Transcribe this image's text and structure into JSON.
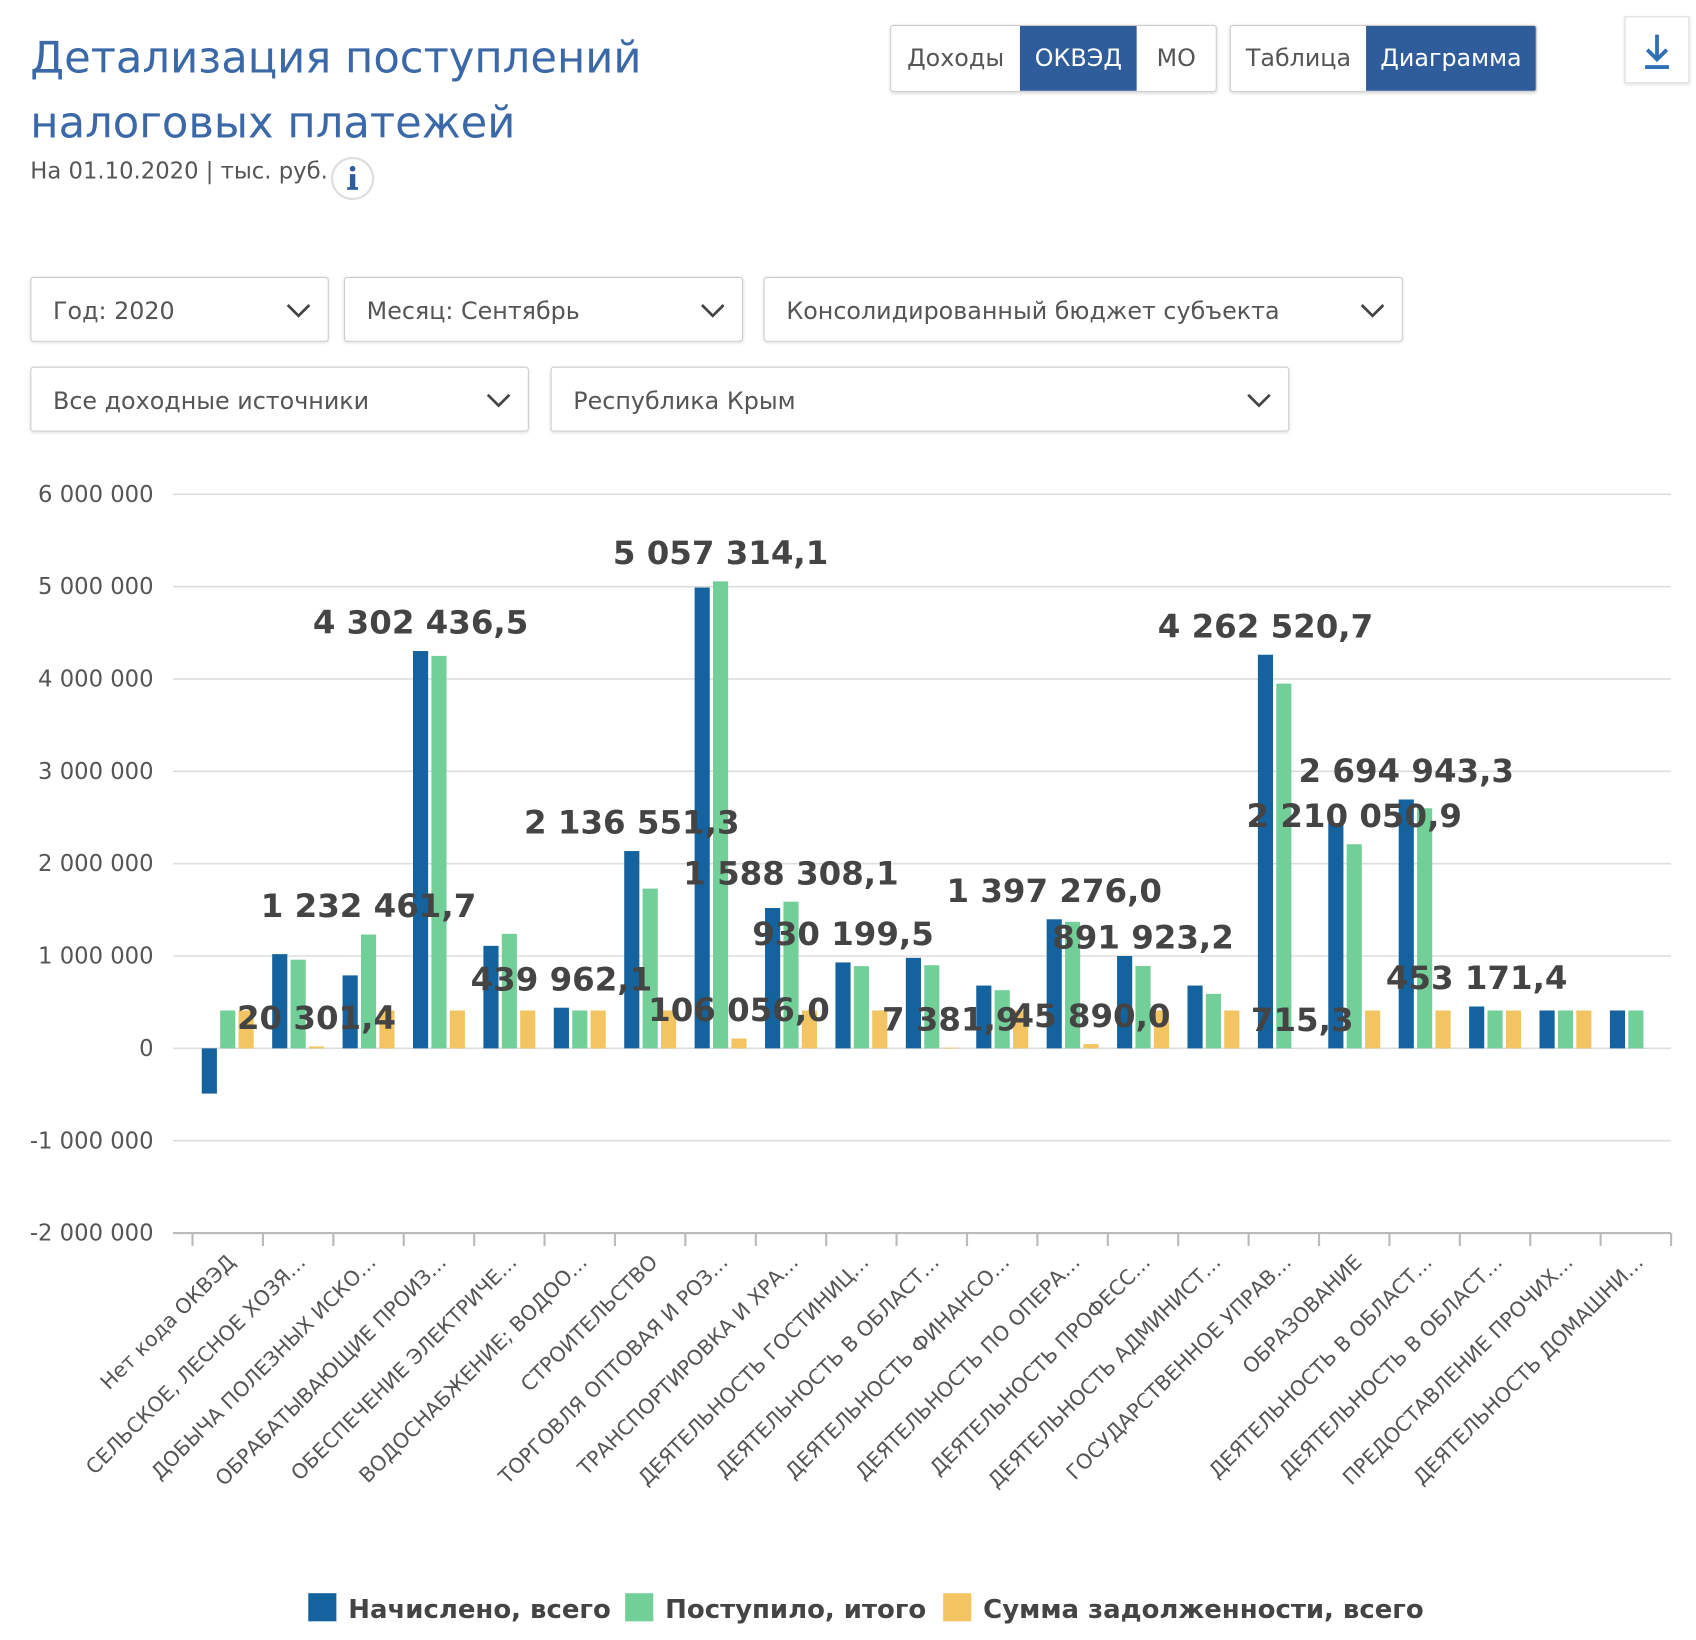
{
  "header": {
    "title": "Детализация поступлений налоговых платежей",
    "subtitle": "На 01.10.2020 | тыс. руб."
  },
  "toggles": [
    [
      {
        "label": "Доходы"
      },
      {
        "label": "ОКВЭД",
        "active": true
      },
      {
        "label": "МО"
      }
    ],
    [
      {
        "label": "Таблица"
      },
      {
        "label": "Диаграмма",
        "active": true
      }
    ]
  ],
  "filters": [
    [
      "Год: 2020",
      "Месяц: Сентябрь",
      "Консолидированный бюджет субъекта"
    ],
    [
      "Все доходные источники",
      "Республика Крым"
    ]
  ],
  "chart_data": {
    "type": "bar",
    "categories": [
      "Нет кода ОКВЭД",
      "СЕЛЬСКОЕ, ЛЕСНОЕ ХОЗЯ…",
      "ДОБЫЧА ПОЛЕЗНЫХ ИСКО…",
      "ОБРАБАТЫВАЮЩИЕ ПРОИЗ…",
      "ОБЕСПЕЧЕНИЕ ЭЛЕКТРИЧЕ…",
      "ВОДОСНАБЖЕНИЕ; ВОДОО…",
      "СТРОИТЕЛЬСТВО",
      "ТОРГОВЛЯ ОПТОВАЯ И РОЗ…",
      "ТРАНСПОРТИРОВКА И ХРА…",
      "ДЕЯТЕЛЬНОСТЬ ГОСТИНИЦ…",
      "ДЕЯТЕЛЬНОСТЬ В ОБЛАСТ…",
      "ДЕЯТЕЛЬНОСТЬ ФИНАНСО…",
      "ДЕЯТЕЛЬНОСТЬ ПО ОПЕРА…",
      "ДЕЯТЕЛЬНОСТЬ ПРОФЕСС…",
      "ДЕЯТЕЛЬНОСТЬ АДМИНИСТ…",
      "ГОСУДАРСТВЕННОЕ УПРАВ…",
      "ОБРАЗОВАНИЕ",
      "ДЕЯТЕЛЬНОСТЬ В ОБЛАСТ…",
      "ДЕЯТЕЛЬНОСТЬ В ОБЛАСТ…",
      "ПРЕДОСТАВЛЕНИЕ ПРОЧИХ…",
      "ДЕЯТЕЛЬНОСТЬ ДОМАШНИ…"
    ],
    "series": [
      {
        "name": "Начислено, всего",
        "color": "#14629e",
        "values": [
          -490000,
          1020000,
          790000,
          4302436.5,
          1110000,
          439962.1,
          2136551.3,
          4990000,
          1520000,
          930199.5,
          980000,
          680000,
          1397276.0,
          1000000,
          680000,
          4262520.7,
          2440000,
          2694943.3,
          453171.4,
          410000,
          410000
        ],
        "value_labels": [
          null,
          null,
          null,
          "4 302 436,5",
          null,
          "439 962,1",
          "2 136 551,3",
          null,
          null,
          "930 199,5",
          null,
          null,
          "1 397 276,0",
          null,
          null,
          "4 262 520,7",
          null,
          "2 694 943,3",
          "453 171,4",
          null,
          null
        ]
      },
      {
        "name": "Поступило, итого",
        "color": "#72cf98",
        "values": [
          410000,
          960000,
          1232461.7,
          4250000,
          1240000,
          410000,
          1730000,
          5057314.1,
          1588308.1,
          890000,
          900000,
          630000,
          1370000,
          891923.2,
          590000,
          3950000,
          2210050.9,
          2600000,
          410000,
          410000,
          410000
        ],
        "value_labels": [
          null,
          null,
          "1 232 461,7",
          null,
          null,
          null,
          null,
          "5 057 314,1",
          "1 588 308,1",
          null,
          null,
          null,
          null,
          "891 923,2",
          null,
          null,
          "2 210 050,9",
          null,
          null,
          null,
          null
        ]
      },
      {
        "name": "Сумма задолженности, всего",
        "color": "#f2c462",
        "values": [
          410000,
          20301.4,
          410000,
          410000,
          410000,
          410000,
          410000,
          106056.0,
          410000,
          410000,
          7381.9,
          410000,
          45890.0,
          410000,
          410000,
          715.3,
          410000,
          410000,
          410000,
          410000,
          null
        ],
        "value_labels": [
          null,
          "20 301,4",
          null,
          null,
          null,
          null,
          null,
          "106 056,0",
          null,
          null,
          "7 381,9",
          null,
          "45 890,0",
          null,
          null,
          "715,3",
          null,
          null,
          null,
          null,
          null
        ]
      }
    ],
    "ylim": [
      -2000000,
      6000000
    ],
    "yticks": [
      {
        "value": -2000000,
        "label": "-2 000 000"
      },
      {
        "value": -1000000,
        "label": "-1 000 000"
      },
      0,
      {
        "value": 1000000,
        "label": "1 000 000"
      },
      {
        "value": 2000000,
        "label": "2 000 000"
      },
      {
        "value": 3000000,
        "label": "3 000 000"
      },
      {
        "value": 4000000,
        "label": "4 000 000"
      },
      {
        "value": 5000000,
        "label": "5 000 000"
      },
      {
        "value": 6000000,
        "label": "6 000 000"
      }
    ],
    "grid": true
  }
}
